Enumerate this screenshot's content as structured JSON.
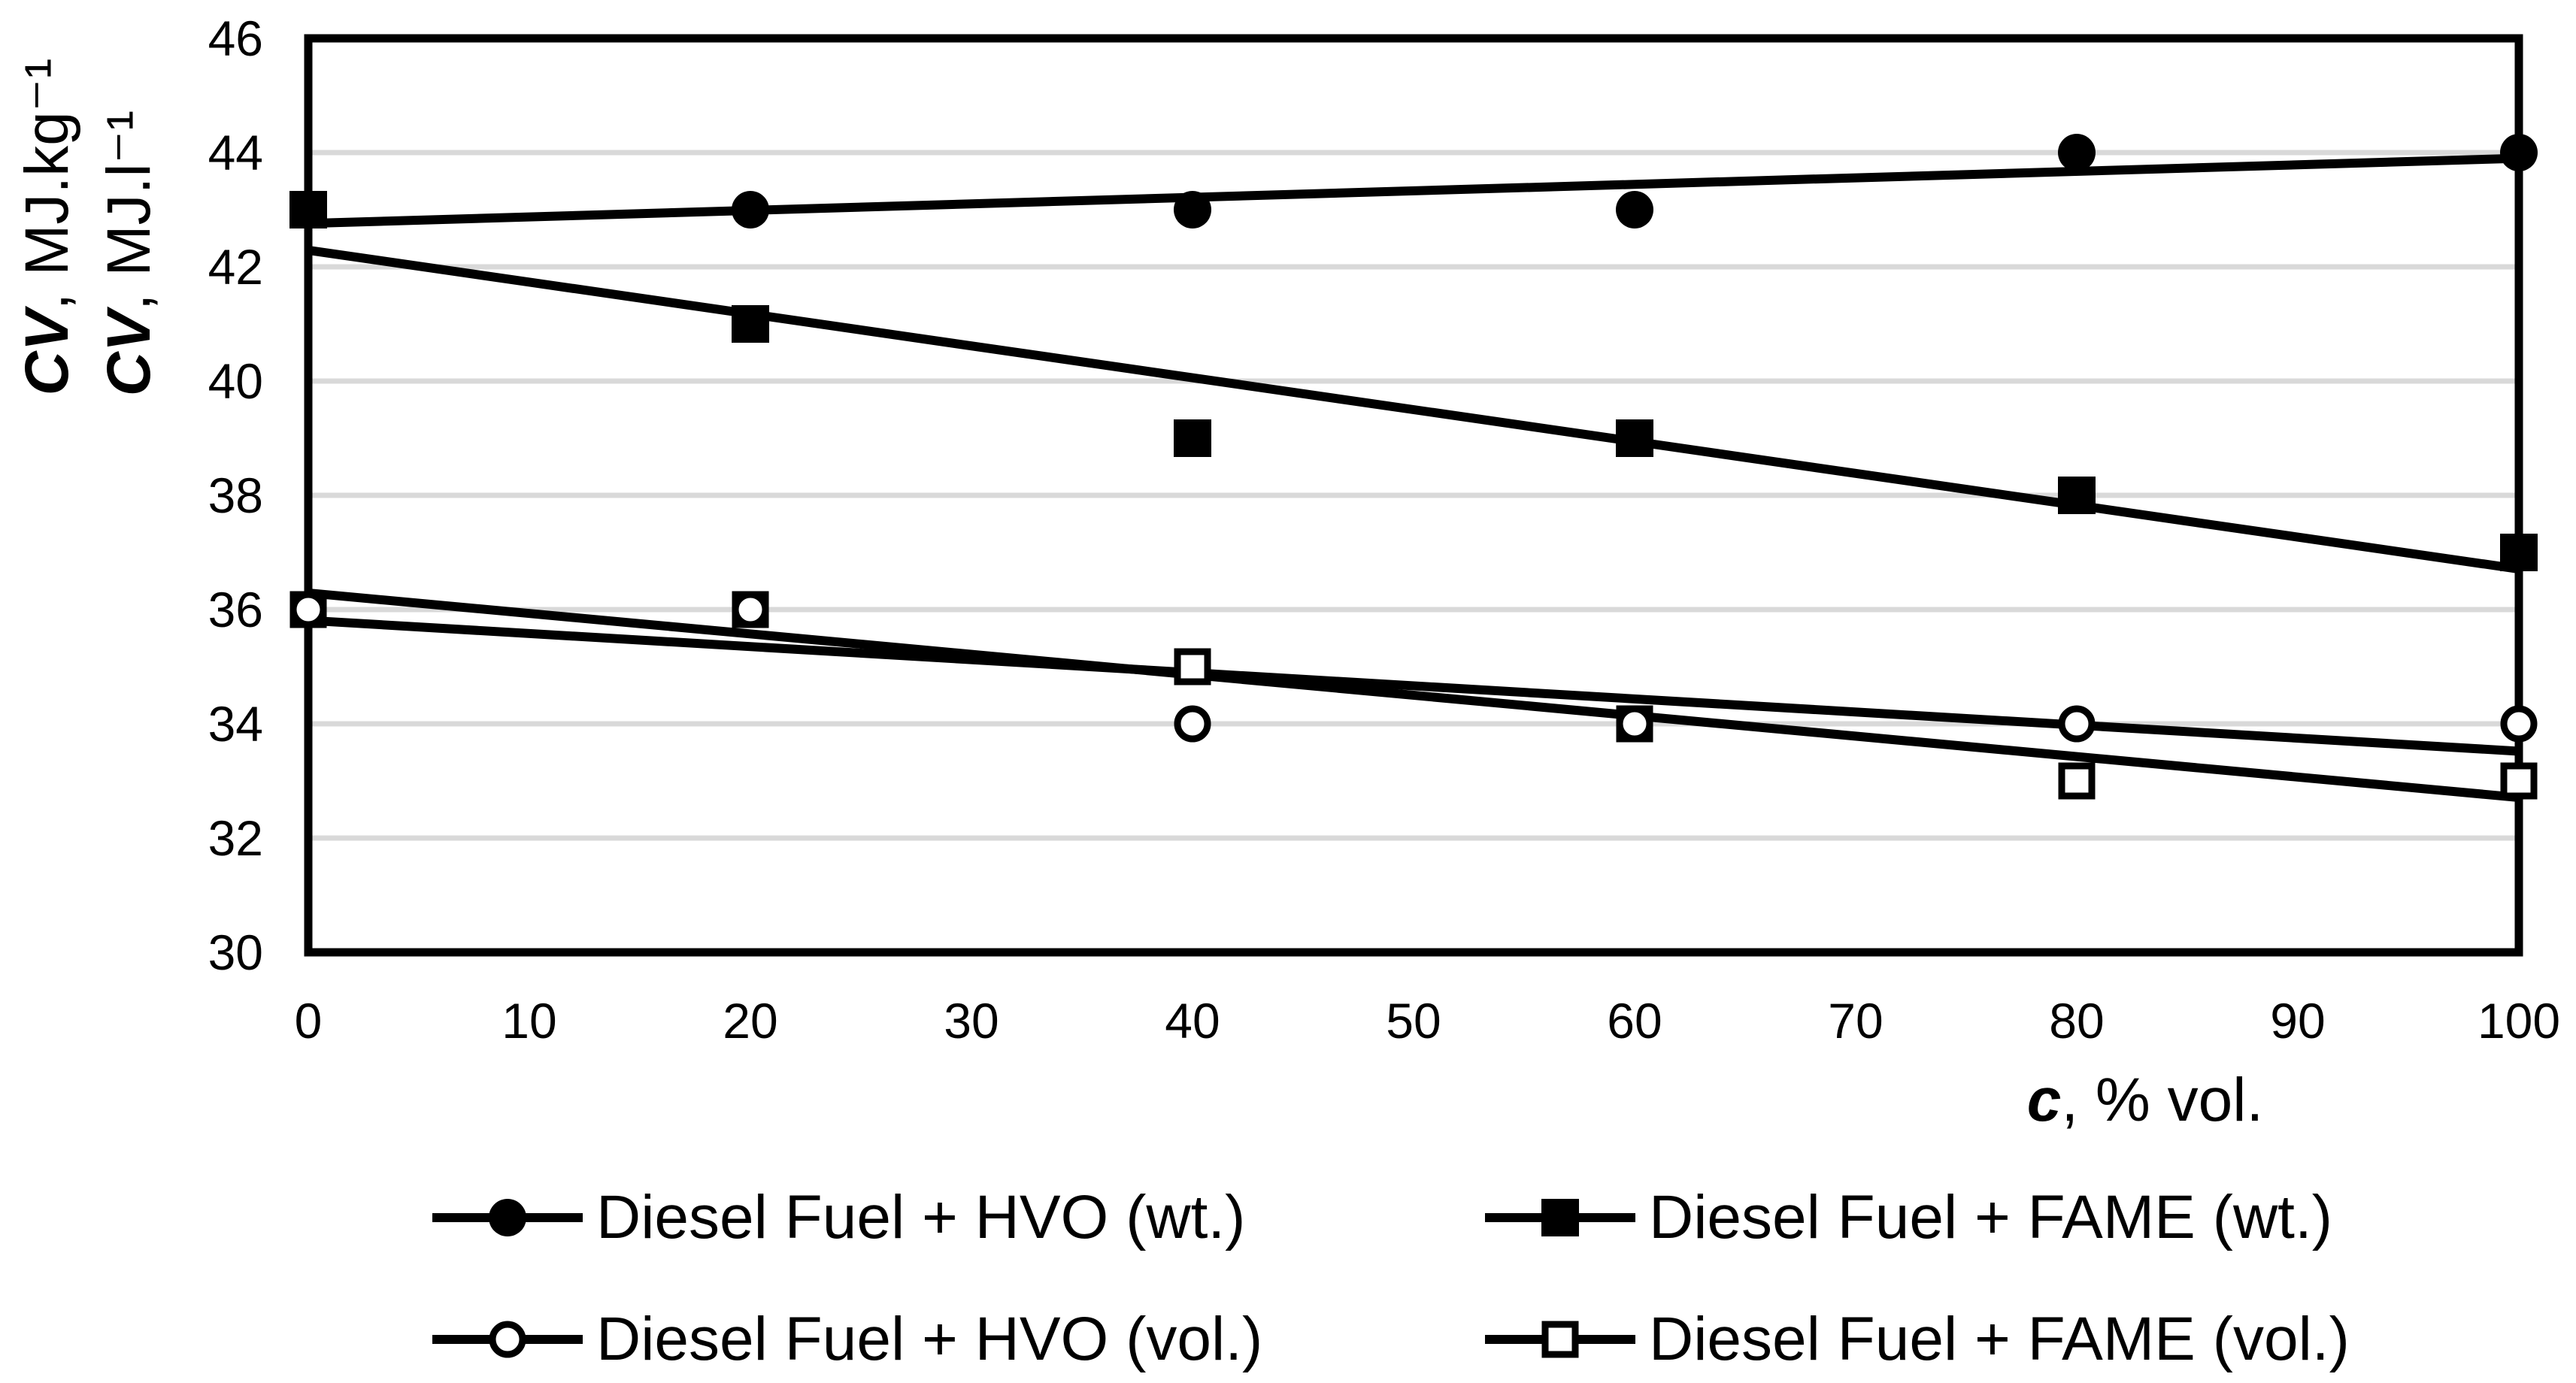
{
  "figure": {
    "background": "#ffffff",
    "ink_color": "#000000",
    "grid_color": "#d9d9d9",
    "xlabel": {
      "var": "c",
      "rest": ", % vol."
    },
    "ylabel_outer": {
      "var": "CV",
      "rest": ", MJ.kg⁻¹"
    },
    "ylabel_inner": {
      "var": "CV",
      "rest": ", MJ.l⁻¹"
    }
  },
  "chart_data": {
    "type": "scatter",
    "title": "",
    "xlabel": "c, % vol.",
    "ylabel": "CV, MJ.kg-1 / CV, MJ.l-1",
    "x": [
      0,
      20,
      40,
      60,
      80,
      100
    ],
    "x_ticks": [
      0,
      10,
      20,
      30,
      40,
      50,
      60,
      70,
      80,
      90,
      100
    ],
    "y_ticks": [
      30,
      32,
      34,
      36,
      38,
      40,
      42,
      44,
      46
    ],
    "xlim": [
      0,
      100
    ],
    "ylim": [
      30,
      46
    ],
    "grid": "horizontal gridlines at even values, light gray",
    "legend_position": "bottom, two columns",
    "series": [
      {
        "name": "Diesel Fuel + HVO (wt.)",
        "marker": "filled-circle",
        "values": [
          43,
          43,
          43,
          43,
          44,
          44
        ],
        "trend": {
          "y0": 42.76,
          "y100": 43.9
        }
      },
      {
        "name": "Diesel Fuel + FAME (wt.)",
        "marker": "filled-square",
        "values": [
          43,
          41,
          39,
          39,
          38,
          37
        ],
        "trend": {
          "y0": 42.29,
          "y100": 36.71
        }
      },
      {
        "name": "Diesel Fuel + HVO (vol.)",
        "marker": "open-circle",
        "values": [
          36,
          36,
          34,
          34,
          34,
          34
        ],
        "trend": {
          "y0": 35.81,
          "y100": 33.52
        }
      },
      {
        "name": "Diesel Fuel + FAME (vol.)",
        "marker": "open-square",
        "values": [
          36,
          36,
          35,
          34,
          33,
          33
        ],
        "trend": {
          "y0": 36.29,
          "y100": 32.71
        }
      }
    ]
  }
}
